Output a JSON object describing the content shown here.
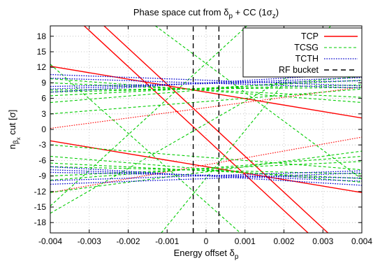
{
  "chart_data": {
    "type": "line",
    "title": {
      "main": "Phase space cut from δ",
      "sub": "p",
      "tail": " + CC (1σ",
      "sub2": "z",
      "close": ")"
    },
    "xlabel": {
      "main": "Energy offset δ",
      "sub": "p"
    },
    "ylabel": {
      "main": "n",
      "sub": "β",
      "subsub": "x",
      "tail": " cut [σ]"
    },
    "xlim": [
      -0.004,
      0.004
    ],
    "ylim": [
      -20,
      20
    ],
    "xticks": [
      -0.004,
      -0.003,
      -0.002,
      -0.001,
      0,
      0.001,
      0.002,
      0.003,
      0.004
    ],
    "xtick_labels": [
      "-0.004",
      "-0.003",
      "-0.002",
      "-0.001",
      "0",
      "0.001",
      "0.002",
      "0.003",
      "0.004"
    ],
    "yticks": [
      18,
      15,
      12,
      9,
      6,
      3,
      0,
      -3,
      -6,
      -9,
      -12,
      -15,
      -18
    ],
    "ytick_labels": [
      "18",
      "15",
      "12",
      "9",
      "6",
      "3",
      "0",
      "-3",
      "-6",
      "-9",
      "-12",
      "-15",
      "-18"
    ],
    "grid": true,
    "legend_position": "top-right",
    "colors": {
      "tcp": "#ff0000",
      "tcsg": "#00cc00",
      "tcth": "#0000cc",
      "rf": "#000000"
    },
    "series": [
      {
        "name": "TCP",
        "style": "solid",
        "color": "#ff0000",
        "width": 1.4,
        "lines": [
          {
            "x": [
              -0.004,
              0.004
            ],
            "y": [
              12.2,
              2.2
            ]
          },
          {
            "x": [
              -0.004,
              0.004
            ],
            "y": [
              -2.2,
              -12.2
            ]
          },
          {
            "x": [
              -0.00313,
              0.00262
            ],
            "y": [
              20,
              -20
            ]
          },
          {
            "x": [
              -0.00262,
              0.00313
            ],
            "y": [
              20,
              -20
            ]
          }
        ]
      },
      {
        "name": "",
        "style": "dotted",
        "color": "#ff0000",
        "width": 1.1,
        "lines": [
          {
            "x": [
              -0.004,
              0.004
            ],
            "y": [
              0.2,
              8.2
            ]
          },
          {
            "x": [
              -0.004,
              0.004
            ],
            "y": [
              -12.2,
              -1.5
            ]
          }
        ]
      },
      {
        "name": "TCSG",
        "style": "dashed",
        "color": "#00cc00",
        "width": 1.1,
        "lines": [
          {
            "x": [
              -0.004,
              0.004
            ],
            "y": [
              5.2,
              10.2
            ]
          },
          {
            "x": [
              -0.004,
              0.004
            ],
            "y": [
              6.5,
              9.5
            ]
          },
          {
            "x": [
              -0.004,
              0.004
            ],
            "y": [
              7.2,
              8.6
            ]
          },
          {
            "x": [
              -0.004,
              0.004
            ],
            "y": [
              7.6,
              8.1
            ]
          },
          {
            "x": [
              -0.004,
              0.004
            ],
            "y": [
              9.8,
              5.2
            ]
          },
          {
            "x": [
              -0.004,
              0.004
            ],
            "y": [
              9.0,
              6.2
            ]
          },
          {
            "x": [
              -0.004,
              0.004
            ],
            "y": [
              -5.2,
              -10.2
            ]
          },
          {
            "x": [
              -0.004,
              0.004
            ],
            "y": [
              -6.5,
              -9.5
            ]
          },
          {
            "x": [
              -0.004,
              0.004
            ],
            "y": [
              -7.2,
              -8.6
            ]
          },
          {
            "x": [
              -0.004,
              0.004
            ],
            "y": [
              -9.8,
              -5.2
            ]
          },
          {
            "x": [
              -0.004,
              0.004
            ],
            "y": [
              -9.0,
              -6.2
            ]
          },
          {
            "x": [
              -0.004,
              0.004
            ],
            "y": [
              3.0,
              7.8
            ]
          },
          {
            "x": [
              -0.004,
              0.004
            ],
            "y": [
              -3.0,
              -7.8
            ]
          },
          {
            "x": [
              -0.004,
              0.00088
            ],
            "y": [
              12.6,
              -20
            ]
          },
          {
            "x": [
              -0.004,
              0.004
            ],
            "y": [
              -16.2,
              18.4
            ]
          },
          {
            "x": [
              -0.0013,
              0.004
            ],
            "y": [
              20,
              -9.6
            ]
          },
          {
            "x": [
              -0.004,
              0.004
            ],
            "y": [
              -12.2,
              -4.2
            ]
          },
          {
            "x": [
              -0.00115,
              0.0032
            ],
            "y": [
              -20,
              20
            ]
          },
          {
            "x": [
              -0.004,
              0.00105
            ],
            "y": [
              -14.8,
              20
            ]
          }
        ]
      },
      {
        "name": "TCTH",
        "style": "dotted",
        "color": "#0000cc",
        "width": 1.3,
        "lines": [
          {
            "x": [
              -0.004,
              0.004
            ],
            "y": [
              7.2,
              10.8
            ]
          },
          {
            "x": [
              -0.004,
              0.004
            ],
            "y": [
              7.8,
              10.0
            ]
          },
          {
            "x": [
              -0.004,
              0.004
            ],
            "y": [
              8.3,
              9.4
            ]
          },
          {
            "x": [
              -0.004,
              0.004
            ],
            "y": [
              10.6,
              8.4
            ]
          },
          {
            "x": [
              -0.004,
              0.004
            ],
            "y": [
              9.9,
              8.0
            ]
          },
          {
            "x": [
              -0.004,
              0.004
            ],
            "y": [
              -7.2,
              -10.8
            ]
          },
          {
            "x": [
              -0.004,
              0.004
            ],
            "y": [
              -7.8,
              -10.0
            ]
          },
          {
            "x": [
              -0.004,
              0.004
            ],
            "y": [
              -8.3,
              -9.4
            ]
          },
          {
            "x": [
              -0.004,
              0.004
            ],
            "y": [
              -10.6,
              -8.4
            ]
          },
          {
            "x": [
              -0.004,
              0.004
            ],
            "y": [
              -9.9,
              -8.0
            ]
          }
        ]
      },
      {
        "name": "RF bucket",
        "style": "dashed-long",
        "color": "#000000",
        "width": 1.4,
        "lines": [
          {
            "x": [
              -0.00033,
              -0.00033
            ],
            "y": [
              -20,
              20
            ]
          },
          {
            "x": [
              0.00033,
              0.00033
            ],
            "y": [
              -20,
              20
            ]
          }
        ]
      }
    ]
  }
}
